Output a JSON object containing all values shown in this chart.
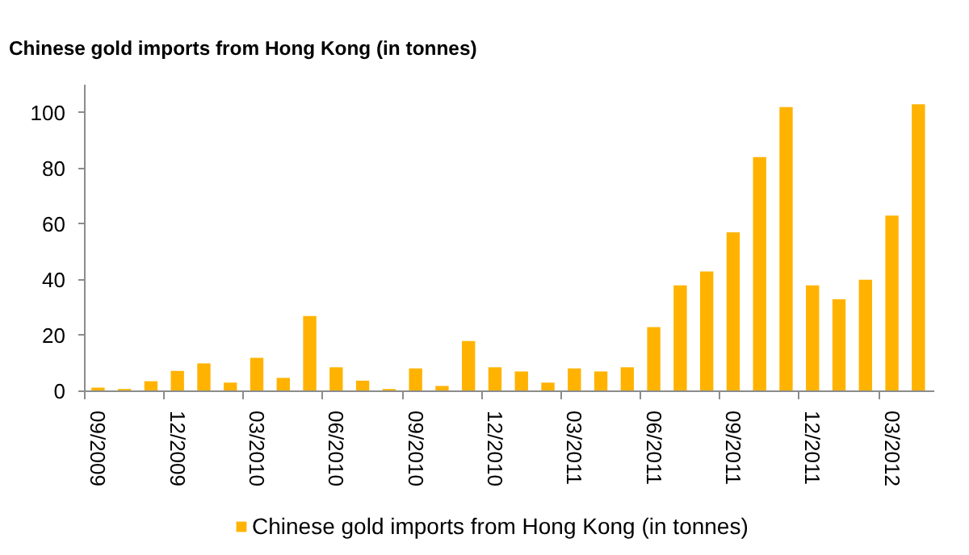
{
  "chart_data": {
    "type": "bar",
    "title": "Chinese gold imports from Hong Kong (in tonnes)",
    "categories": [
      "09/2009",
      null,
      null,
      "12/2009",
      null,
      null,
      "03/2010",
      null,
      null,
      "06/2010",
      null,
      null,
      "09/2010",
      null,
      null,
      "12/2010",
      null,
      null,
      "03/2011",
      null,
      null,
      "06/2011",
      null,
      null,
      "09/2011",
      null,
      null,
      "12/2011",
      null,
      null,
      "03/2012",
      null
    ],
    "series": [
      {
        "name": "Chinese gold imports from Hong Kong (in tonnes)",
        "color": "#ffb300",
        "values": [
          1.3,
          0.8,
          3.6,
          7.3,
          10,
          3.1,
          12,
          4.8,
          27,
          8.6,
          3.8,
          0.8,
          8.2,
          1.9,
          18,
          8.6,
          7.1,
          3.1,
          8.2,
          7.1,
          8.6,
          23,
          38,
          43,
          57,
          84,
          102,
          38,
          33,
          40,
          63,
          103
        ]
      }
    ],
    "ylim": [
      0,
      110
    ],
    "yticks": [
      0,
      20,
      40,
      60,
      80,
      100
    ],
    "grid": false,
    "legend": "bottom"
  }
}
